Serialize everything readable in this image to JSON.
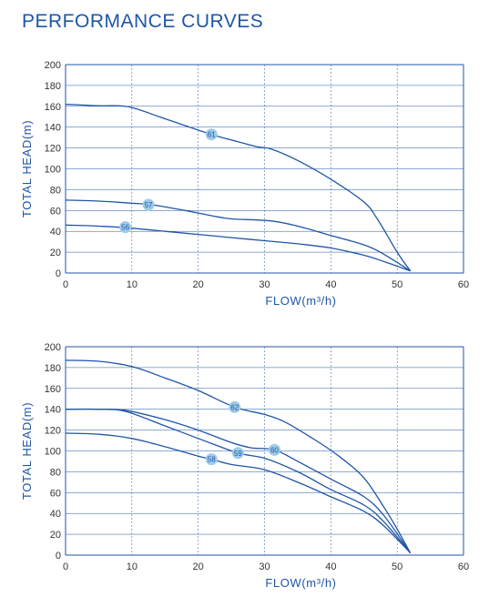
{
  "title": "PERFORMANCE CURVES",
  "colors": {
    "accent": "#1f56a8",
    "grid": "#1f56a8",
    "badge": "#9ecbe8"
  },
  "chart_data": [
    {
      "type": "line",
      "xlabel": "FLOW(m³/h)",
      "ylabel": "TOTAL HEAD(m)",
      "xlim": [
        0,
        60
      ],
      "ylim": [
        0,
        200
      ],
      "xticks": [
        0,
        10,
        20,
        30,
        40,
        50,
        60
      ],
      "yticks": [
        0,
        20,
        40,
        60,
        80,
        100,
        120,
        140,
        160,
        180,
        200
      ],
      "grid": true,
      "series": [
        {
          "name": "61",
          "x": [
            0,
            5,
            9.5,
            15,
            22,
            26,
            29,
            31,
            35,
            40,
            45,
            47,
            50,
            52
          ],
          "y": [
            162,
            160.5,
            159.5,
            148,
            133,
            126,
            121,
            119,
            108,
            90,
            68,
            52,
            20,
            2
          ],
          "label_at": [
            22,
            133
          ]
        },
        {
          "name": "57",
          "x": [
            0,
            5,
            10,
            13,
            18,
            22,
            25,
            31,
            35,
            40,
            45,
            48,
            52
          ],
          "y": [
            70,
            69,
            67,
            65.5,
            60,
            55,
            52,
            50,
            45,
            36,
            27,
            18,
            2
          ],
          "label_at": [
            12.5,
            65.5
          ]
        },
        {
          "name": "56",
          "x": [
            0,
            5,
            9,
            15,
            20,
            25,
            30,
            35,
            40,
            45,
            48,
            52
          ],
          "y": [
            46,
            45,
            43.5,
            40,
            37,
            34,
            31,
            28,
            24,
            17,
            11,
            2
          ],
          "label_at": [
            9,
            44
          ]
        }
      ]
    },
    {
      "type": "line",
      "xlabel": "FLOW(m³/h)",
      "ylabel": "TOTAL HEAD(m)",
      "xlim": [
        0,
        60
      ],
      "ylim": [
        0,
        200
      ],
      "xticks": [
        0,
        10,
        20,
        30,
        40,
        50,
        60
      ],
      "yticks": [
        0,
        20,
        40,
        60,
        80,
        100,
        120,
        140,
        160,
        180,
        200
      ],
      "grid": true,
      "series": [
        {
          "name": "62",
          "x": [
            0,
            5,
            10,
            15,
            20,
            25.5,
            30,
            33,
            37,
            41,
            45,
            48,
            50,
            52
          ],
          "y": [
            187,
            186,
            181,
            170,
            158,
            142,
            135,
            128,
            113,
            96,
            74,
            46,
            25,
            2
          ],
          "label_at": [
            25.5,
            142
          ]
        },
        {
          "name": "60",
          "x": [
            0,
            5,
            9,
            15,
            20,
            25,
            28,
            31.5,
            35,
            40,
            45,
            48,
            52
          ],
          "y": [
            140,
            140,
            139,
            130,
            120,
            108,
            103,
            101,
            90,
            73,
            56,
            38,
            2
          ],
          "label_at": [
            31.5,
            101
          ]
        },
        {
          "name": "59",
          "x": [
            0,
            5,
            9,
            15,
            20,
            26,
            30,
            35,
            40,
            45,
            48,
            52
          ],
          "y": [
            140,
            140,
            138,
            124,
            112,
            98,
            93,
            80,
            63,
            48,
            32,
            2
          ],
          "label_at": [
            26,
            98
          ]
        },
        {
          "name": "58",
          "x": [
            0,
            5,
            10,
            15,
            20,
            22,
            25,
            30,
            35,
            40,
            45,
            48,
            52
          ],
          "y": [
            117,
            116,
            112,
            104,
            95,
            92,
            87,
            82,
            70,
            56,
            42,
            28,
            2
          ],
          "label_at": [
            22,
            92
          ]
        }
      ]
    }
  ]
}
